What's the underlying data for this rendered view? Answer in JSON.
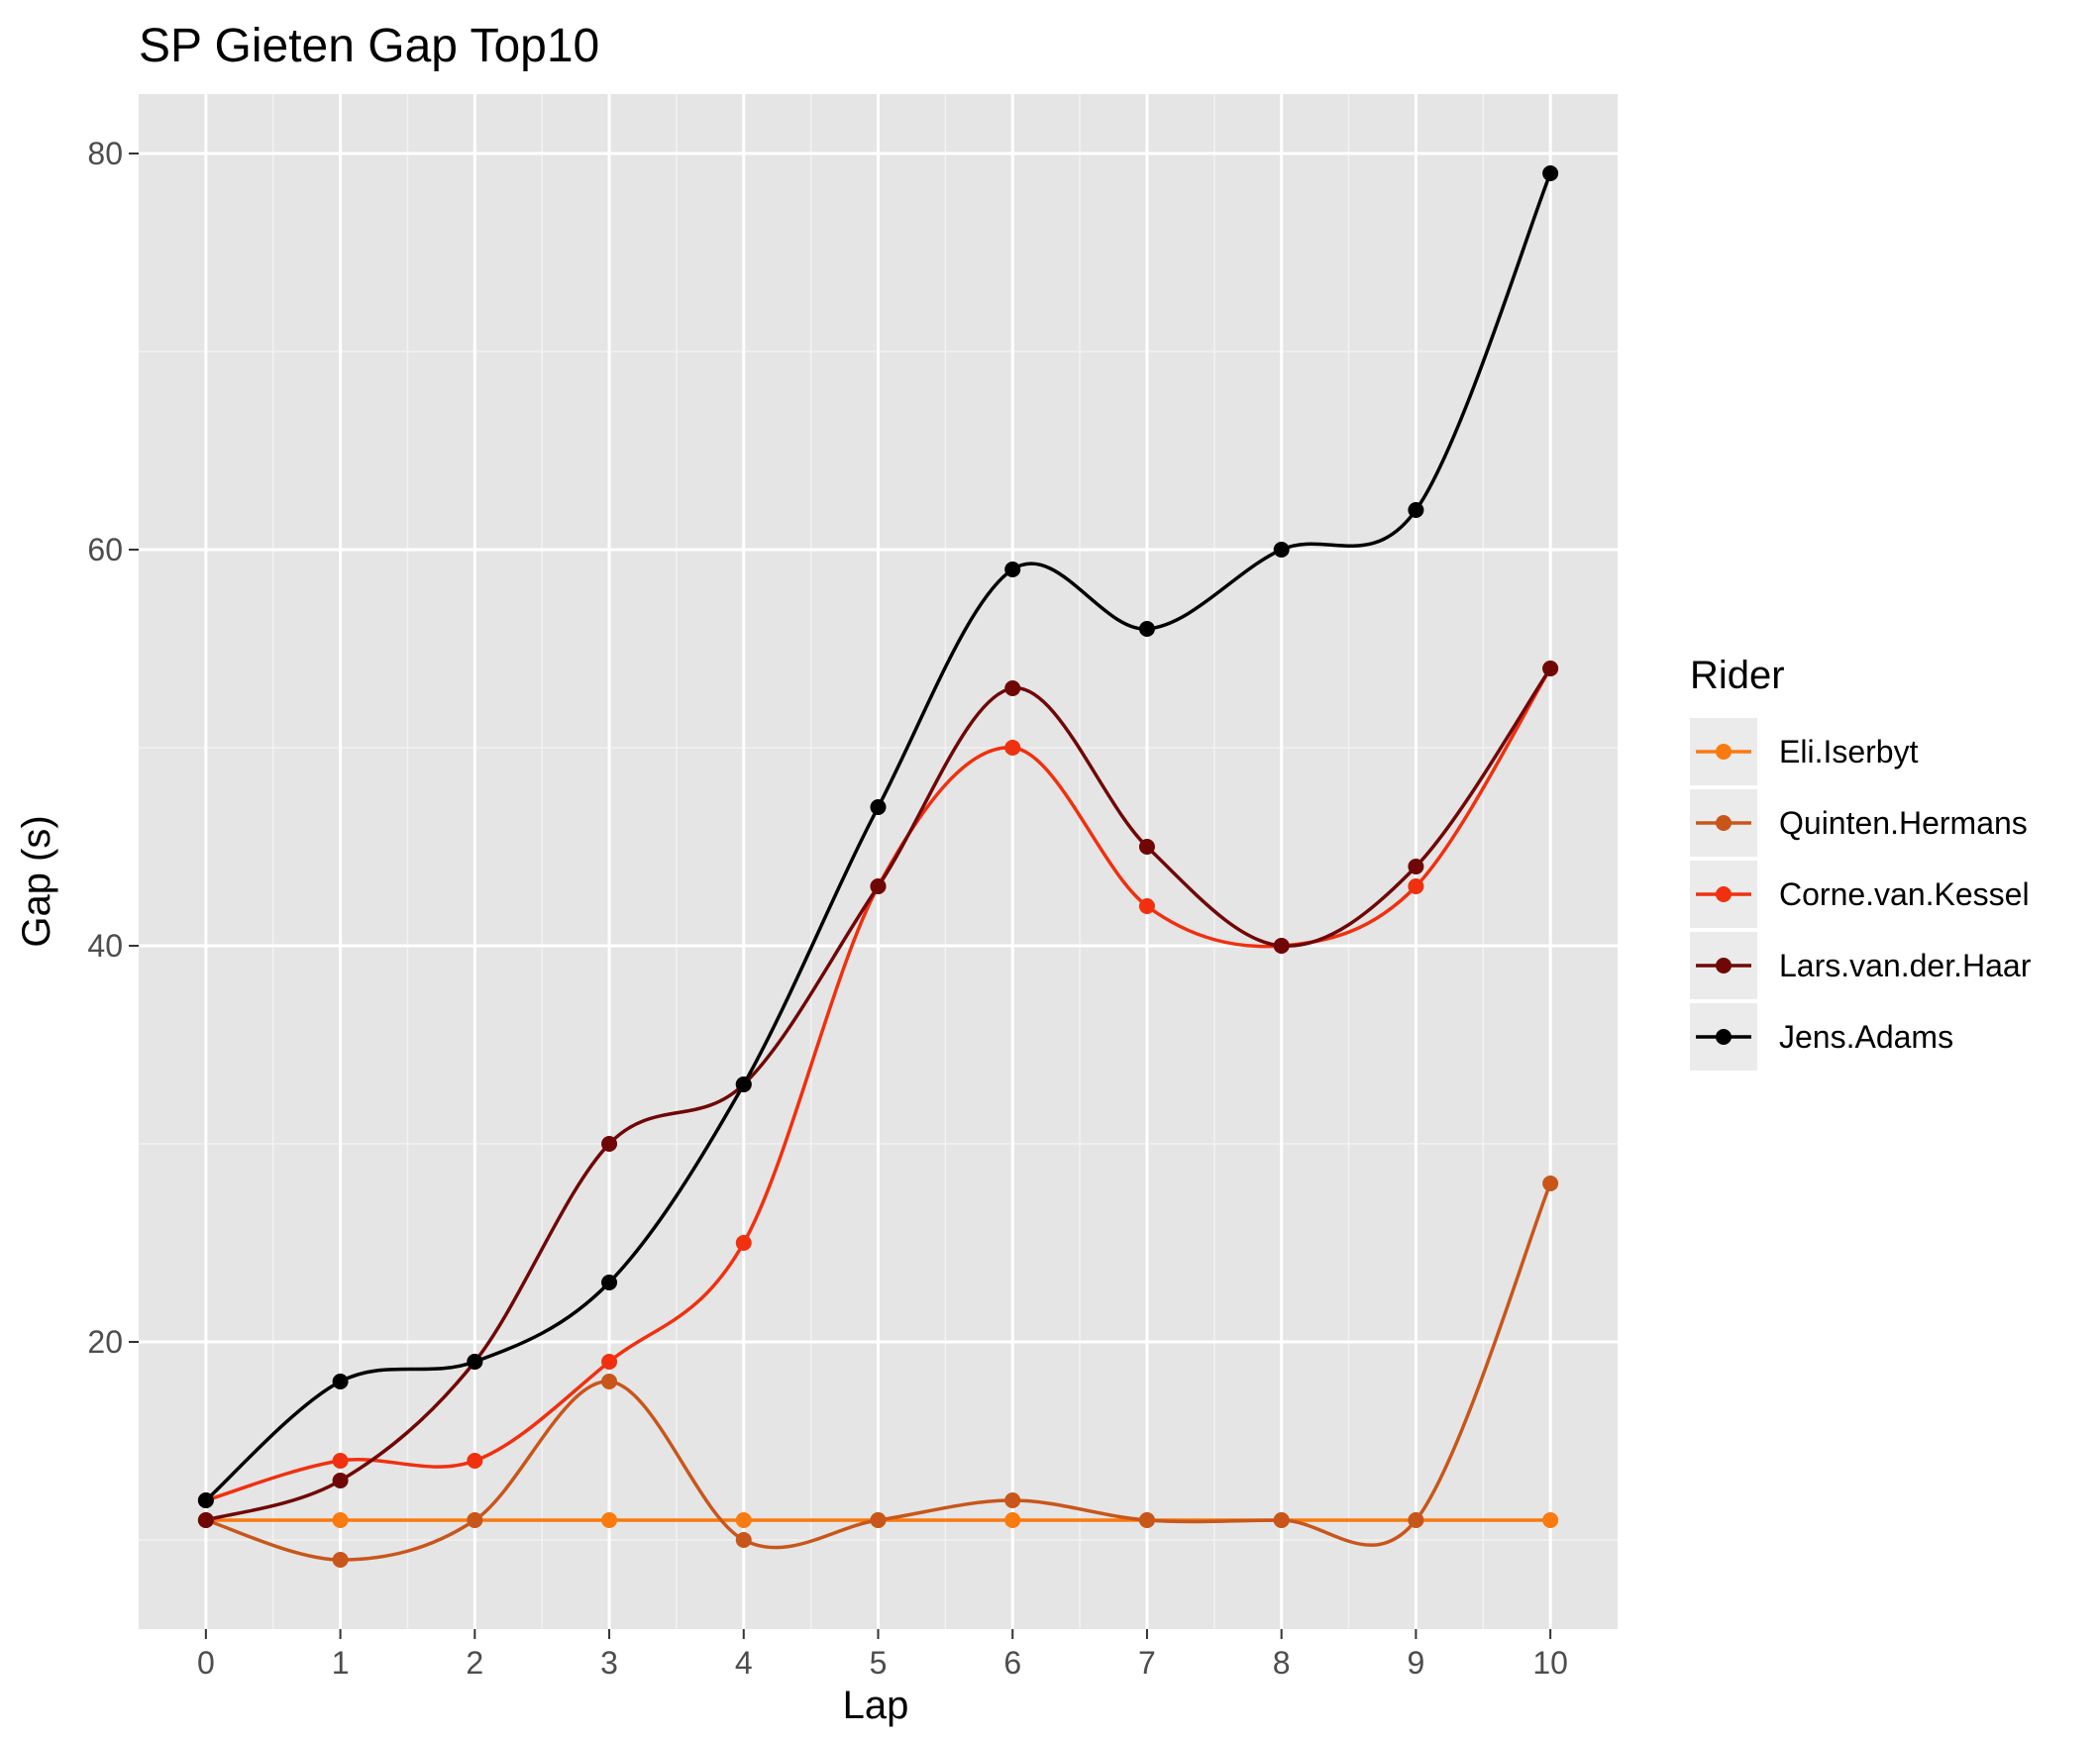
{
  "chart_data": {
    "type": "line",
    "title": "SP Gieten Gap Top10",
    "xlabel": "Lap",
    "ylabel": "Gap (s)",
    "x": [
      0,
      1,
      2,
      3,
      4,
      5,
      6,
      7,
      8,
      9,
      10
    ],
    "x_ticks": [
      "0",
      "1",
      "2",
      "3",
      "4",
      "5",
      "6",
      "7",
      "8",
      "9",
      "10"
    ],
    "y_ticks": [
      "20",
      "40",
      "60",
      "80"
    ],
    "xlim": [
      -0.5,
      10.5
    ],
    "ylim": [
      5.5,
      83
    ],
    "grid": true,
    "legend": {
      "title": "Rider",
      "position": "right"
    },
    "series": [
      {
        "name": "Eli.Iserbyt",
        "color": "#f97a0e",
        "values": [
          11,
          11,
          11,
          11,
          11,
          11,
          11,
          11,
          11,
          11,
          11
        ]
      },
      {
        "name": "Quinten.Hermans",
        "color": "#c8561b",
        "values": [
          11,
          9,
          11,
          18,
          10,
          11,
          12,
          11,
          11,
          11,
          28
        ]
      },
      {
        "name": "Corne.van.Kessel",
        "color": "#f0300f",
        "values": [
          12,
          14,
          14,
          19,
          25,
          43,
          50,
          42,
          40,
          43,
          54
        ]
      },
      {
        "name": "Lars.van.der.Haar",
        "color": "#700707",
        "values": [
          11,
          13,
          19,
          30,
          33,
          43,
          53,
          45,
          40,
          44,
          54
        ]
      },
      {
        "name": "Jens.Adams",
        "color": "#000000",
        "values": [
          12,
          18,
          19,
          23,
          33,
          47,
          59,
          56,
          60,
          62,
          79
        ]
      }
    ]
  }
}
